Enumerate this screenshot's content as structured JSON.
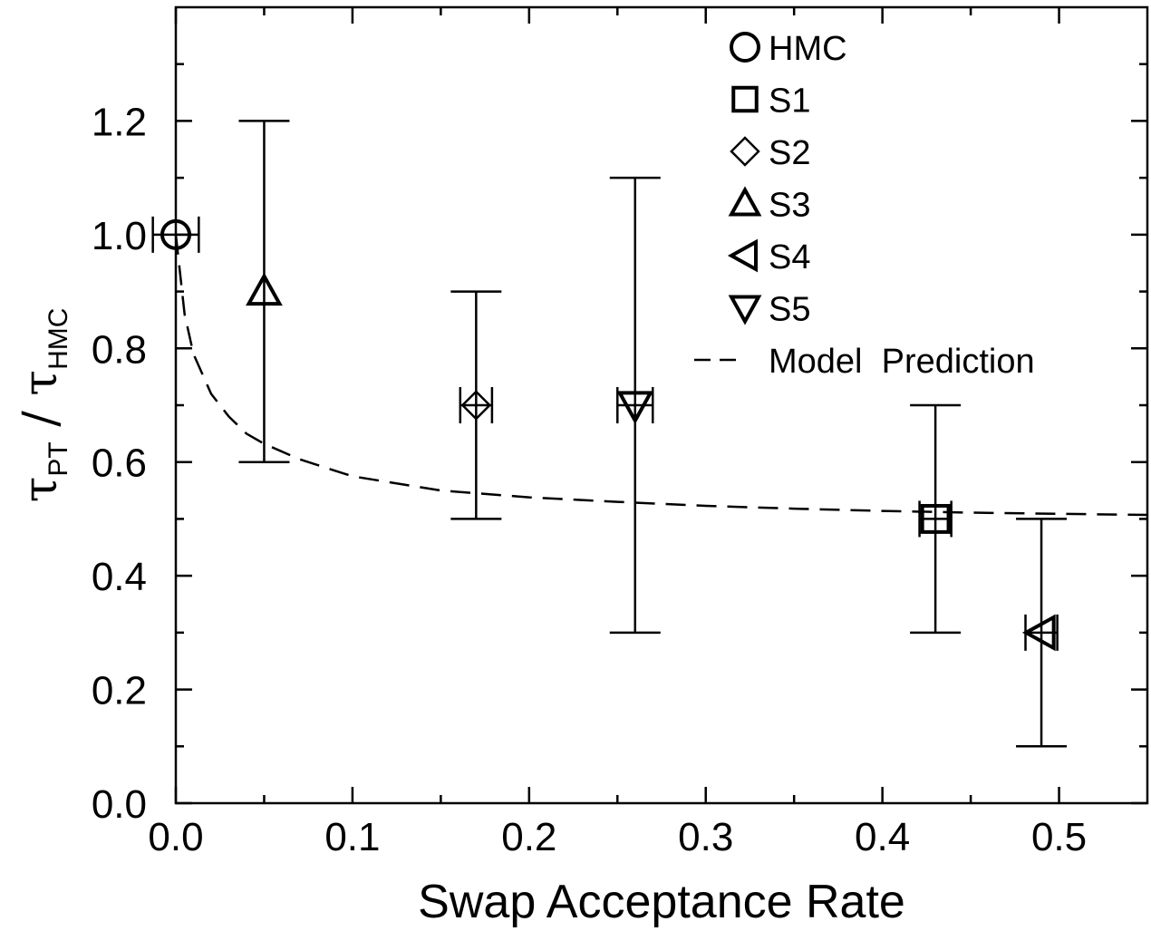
{
  "chart_data": {
    "type": "scatter",
    "xlabel": "Swap Acceptance Rate",
    "ylabel": {
      "tau_symbol": "τ",
      "numerator_sub": "PT",
      "slash": " / ",
      "denominator_sub": "HMC"
    },
    "xlim": [
      0.0,
      0.55
    ],
    "ylim": [
      0.0,
      1.4
    ],
    "x_ticks": [
      0.0,
      0.1,
      0.2,
      0.3,
      0.4,
      0.5
    ],
    "x_tick_labels": [
      "0.0",
      "0.1",
      "0.2",
      "0.3",
      "0.4",
      "0.5"
    ],
    "y_ticks": [
      0.0,
      0.2,
      0.4,
      0.6,
      0.8,
      1.0,
      1.2
    ],
    "y_tick_labels": [
      "0.0",
      "0.2",
      "0.4",
      "0.6",
      "0.8",
      "1.0",
      "1.2"
    ],
    "x_minor_step": 0.05,
    "y_minor_step": 0.1,
    "grid": false,
    "legend_position": "top-right",
    "series": [
      {
        "name": "HMC",
        "marker": "circle",
        "x": 0.0,
        "y": 1.0,
        "x_err": 0.013,
        "y_err_low": 1.0,
        "y_err_high": 1.0
      },
      {
        "name": "S1",
        "marker": "square",
        "x": 0.43,
        "y": 0.5,
        "x_err": 0.009,
        "y_err_low": 0.3,
        "y_err_high": 0.7
      },
      {
        "name": "S2",
        "marker": "diamond",
        "x": 0.17,
        "y": 0.7,
        "x_err": 0.009,
        "y_err_low": 0.5,
        "y_err_high": 0.9
      },
      {
        "name": "S3",
        "marker": "triangle-up",
        "x": 0.05,
        "y": 0.9,
        "x_err": 0.0,
        "y_err_low": 0.6,
        "y_err_high": 1.2
      },
      {
        "name": "S4",
        "marker": "triangle-left",
        "x": 0.49,
        "y": 0.3,
        "x_err": 0.009,
        "y_err_low": 0.1,
        "y_err_high": 0.5
      },
      {
        "name": "S5",
        "marker": "triangle-down",
        "x": 0.26,
        "y": 0.7,
        "x_err": 0.01,
        "y_err_low": 0.3,
        "y_err_high": 1.1
      }
    ],
    "model_prediction": {
      "name": "Model  Prediction",
      "style": "dashed",
      "points": [
        [
          0.0,
          1.0
        ],
        [
          0.005,
          0.86
        ],
        [
          0.01,
          0.79
        ],
        [
          0.02,
          0.72
        ],
        [
          0.03,
          0.68
        ],
        [
          0.04,
          0.65
        ],
        [
          0.05,
          0.632
        ],
        [
          0.07,
          0.605
        ],
        [
          0.1,
          0.575
        ],
        [
          0.15,
          0.55
        ],
        [
          0.2,
          0.538
        ],
        [
          0.25,
          0.53
        ],
        [
          0.3,
          0.523
        ],
        [
          0.35,
          0.518
        ],
        [
          0.4,
          0.514
        ],
        [
          0.45,
          0.511
        ],
        [
          0.5,
          0.509
        ],
        [
          0.55,
          0.507
        ]
      ]
    }
  }
}
